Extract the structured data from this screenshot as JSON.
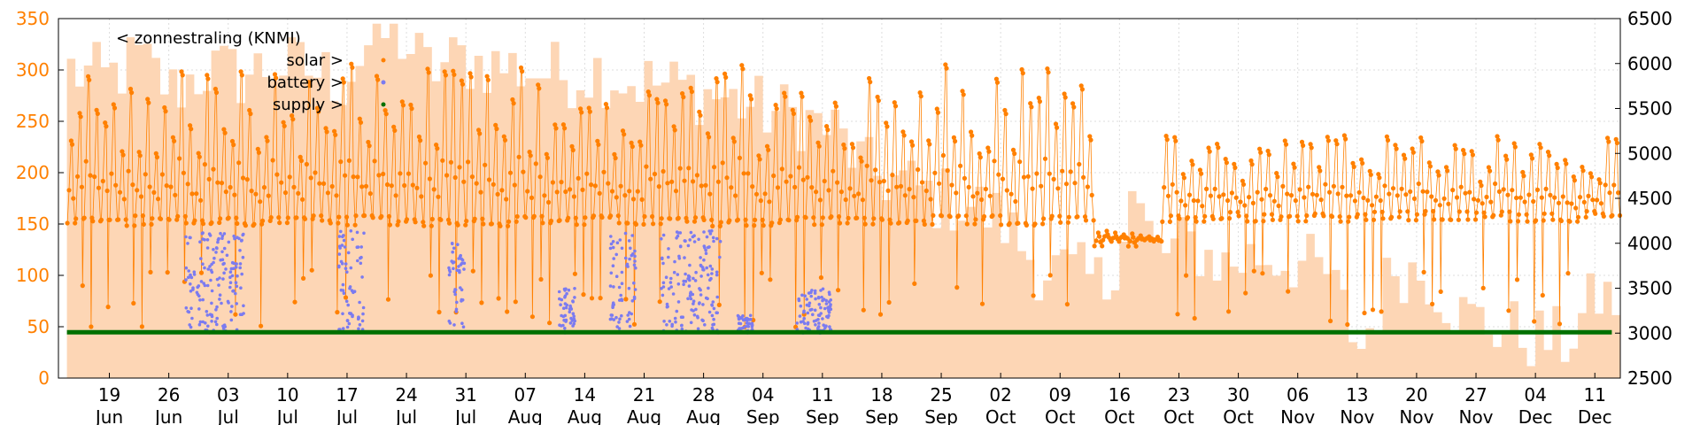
{
  "chart_data": {
    "type": "line",
    "title": "",
    "xlabel": "",
    "ylabel_left": "",
    "ylabel_right": "",
    "x_range": [
      "2015-06-13",
      "2015-12-14"
    ],
    "ylim_left": [
      0,
      350
    ],
    "ylim_right": [
      2500,
      6500
    ],
    "yticks_left": [
      0,
      50,
      100,
      150,
      200,
      250,
      300,
      350
    ],
    "yticks_right": [
      2500,
      3000,
      3500,
      4000,
      4500,
      5000,
      5500,
      6000,
      6500
    ],
    "xticks": [
      {
        "day": "19",
        "month": "Jun",
        "date": "2015-06-19"
      },
      {
        "day": "26",
        "month": "Jun",
        "date": "2015-06-26"
      },
      {
        "day": "03",
        "month": "Jul",
        "date": "2015-07-03"
      },
      {
        "day": "10",
        "month": "Jul",
        "date": "2015-07-10"
      },
      {
        "day": "17",
        "month": "Jul",
        "date": "2015-07-17"
      },
      {
        "day": "24",
        "month": "Jul",
        "date": "2015-07-24"
      },
      {
        "day": "31",
        "month": "Jul",
        "date": "2015-07-31"
      },
      {
        "day": "07",
        "month": "Aug",
        "date": "2015-08-07"
      },
      {
        "day": "14",
        "month": "Aug",
        "date": "2015-08-14"
      },
      {
        "day": "21",
        "month": "Aug",
        "date": "2015-08-21"
      },
      {
        "day": "28",
        "month": "Aug",
        "date": "2015-08-28"
      },
      {
        "day": "04",
        "month": "Sep",
        "date": "2015-09-04"
      },
      {
        "day": "11",
        "month": "Sep",
        "date": "2015-09-11"
      },
      {
        "day": "18",
        "month": "Sep",
        "date": "2015-09-18"
      },
      {
        "day": "25",
        "month": "Sep",
        "date": "2015-09-25"
      },
      {
        "day": "02",
        "month": "Oct",
        "date": "2015-10-02"
      },
      {
        "day": "09",
        "month": "Oct",
        "date": "2015-10-09"
      },
      {
        "day": "16",
        "month": "Oct",
        "date": "2015-10-16"
      },
      {
        "day": "23",
        "month": "Oct",
        "date": "2015-10-23"
      },
      {
        "day": "30",
        "month": "Oct",
        "date": "2015-10-30"
      },
      {
        "day": "06",
        "month": "Nov",
        "date": "2015-11-06"
      },
      {
        "day": "13",
        "month": "Nov",
        "date": "2015-11-13"
      },
      {
        "day": "20",
        "month": "Nov",
        "date": "2015-11-20"
      },
      {
        "day": "27",
        "month": "Nov",
        "date": "2015-11-27"
      },
      {
        "day": "04",
        "month": "Dec",
        "date": "2015-12-04"
      },
      {
        "day": "11",
        "month": "Dec",
        "date": "2015-12-11"
      }
    ],
    "grid": true,
    "legend_position": "top-left",
    "colors": {
      "zonnestraling": "#fdd6b5",
      "solar": "#ff8000",
      "battery": "#7b7bf0",
      "supply": "#007000",
      "left_axis": "#ff8000",
      "right_axis": "#000000"
    },
    "series": [
      {
        "name": "< zonnestraling (KNMI)",
        "axis": "left",
        "kind": "area",
        "points": [
          [
            "2015-06-14",
            300
          ],
          [
            "2015-06-18",
            290
          ],
          [
            "2015-06-22",
            310
          ],
          [
            "2015-06-26",
            280
          ],
          [
            "2015-06-30",
            300
          ],
          [
            "2015-07-04",
            295
          ],
          [
            "2015-07-08",
            305
          ],
          [
            "2015-07-12",
            300
          ],
          [
            "2015-07-16",
            290
          ],
          [
            "2015-07-20",
            335
          ],
          [
            "2015-07-23",
            330
          ],
          [
            "2015-07-26",
            300
          ],
          [
            "2015-07-30",
            310
          ],
          [
            "2015-08-03",
            305
          ],
          [
            "2015-08-07",
            300
          ],
          [
            "2015-08-11",
            295
          ],
          [
            "2015-08-15",
            300
          ],
          [
            "2015-08-19",
            290
          ],
          [
            "2015-08-23",
            285
          ],
          [
            "2015-08-27",
            280
          ],
          [
            "2015-08-31",
            270
          ],
          [
            "2015-09-04",
            260
          ],
          [
            "2015-09-08",
            255
          ],
          [
            "2015-09-12",
            240
          ],
          [
            "2015-09-16",
            200
          ],
          [
            "2015-09-20",
            190
          ],
          [
            "2015-09-24",
            175
          ],
          [
            "2015-09-28",
            170
          ],
          [
            "2015-10-02",
            150
          ],
          [
            "2015-10-06",
            110
          ],
          [
            "2015-10-10",
            100
          ],
          [
            "2015-10-14",
            90
          ],
          [
            "2015-10-17",
            180
          ],
          [
            "2015-10-20",
            120
          ],
          [
            "2015-10-24",
            130
          ],
          [
            "2015-10-28",
            110
          ],
          [
            "2015-11-01",
            120
          ],
          [
            "2015-11-05",
            115
          ],
          [
            "2015-11-09",
            100
          ],
          [
            "2015-11-13",
            30
          ],
          [
            "2015-11-17",
            110
          ],
          [
            "2015-11-21",
            100
          ],
          [
            "2015-11-25",
            60
          ],
          [
            "2015-11-29",
            50
          ],
          [
            "2015-12-03",
            40
          ],
          [
            "2015-12-07",
            35
          ],
          [
            "2015-12-11",
            80
          ],
          [
            "2015-12-13",
            75
          ]
        ]
      },
      {
        "name": "solar >",
        "axis": "right",
        "kind": "line-points",
        "daily": [
          {
            "from": "2015-06-14",
            "to": "2015-10-12",
            "low": 4250,
            "high": 6000
          },
          {
            "from": "2015-10-13",
            "to": "2015-10-20",
            "low": 4000,
            "high": 4150
          },
          {
            "from": "2015-10-21",
            "to": "2015-12-13",
            "low": 4300,
            "high": 5200
          }
        ]
      },
      {
        "name": "battery >",
        "axis": "right",
        "kind": "points",
        "clusters": [
          {
            "from": "2015-06-28",
            "to": "2015-07-04",
            "low": 3000,
            "high": 4150
          },
          {
            "from": "2015-07-16",
            "to": "2015-07-18",
            "low": 3000,
            "high": 4150
          },
          {
            "from": "2015-07-29",
            "to": "2015-07-30",
            "low": 3000,
            "high": 4000
          },
          {
            "from": "2015-08-11",
            "to": "2015-08-12",
            "low": 3000,
            "high": 3500
          },
          {
            "from": "2015-08-17",
            "to": "2015-08-19",
            "low": 3000,
            "high": 4150
          },
          {
            "from": "2015-08-23",
            "to": "2015-08-29",
            "low": 3000,
            "high": 4150
          },
          {
            "from": "2015-09-01",
            "to": "2015-09-02",
            "low": 3000,
            "high": 3200
          },
          {
            "from": "2015-09-08",
            "to": "2015-09-11",
            "low": 3000,
            "high": 3500
          }
        ]
      },
      {
        "name": "supply >",
        "axis": "right",
        "kind": "line",
        "points": [
          [
            "2015-06-14",
            3010
          ],
          [
            "2015-12-13",
            3010
          ]
        ]
      }
    ]
  }
}
